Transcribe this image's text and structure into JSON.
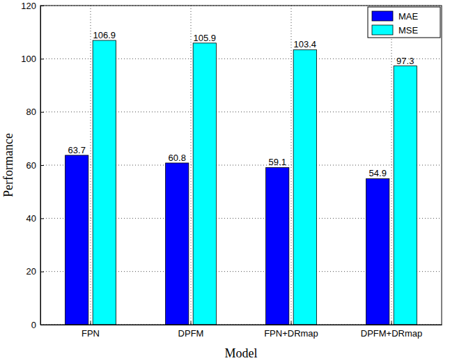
{
  "chart_data": {
    "type": "bar",
    "x_label": "Model",
    "y_label": "Performance",
    "categories": [
      "FPN",
      "DPFM",
      "FPN+DRmap",
      "DPFM+DRmap"
    ],
    "series": [
      {
        "name": "MAE",
        "color": "#0000ff",
        "values": [
          63.7,
          60.8,
          59.1,
          54.9
        ]
      },
      {
        "name": "MSE",
        "color": "#00ffff",
        "values": [
          106.9,
          105.9,
          103.4,
          97.3
        ]
      }
    ],
    "ylim": [
      0,
      120
    ],
    "yticks": [
      0,
      20,
      40,
      60,
      80,
      100,
      120
    ],
    "grid": true,
    "legend": "upper right",
    "data_labels": true
  }
}
